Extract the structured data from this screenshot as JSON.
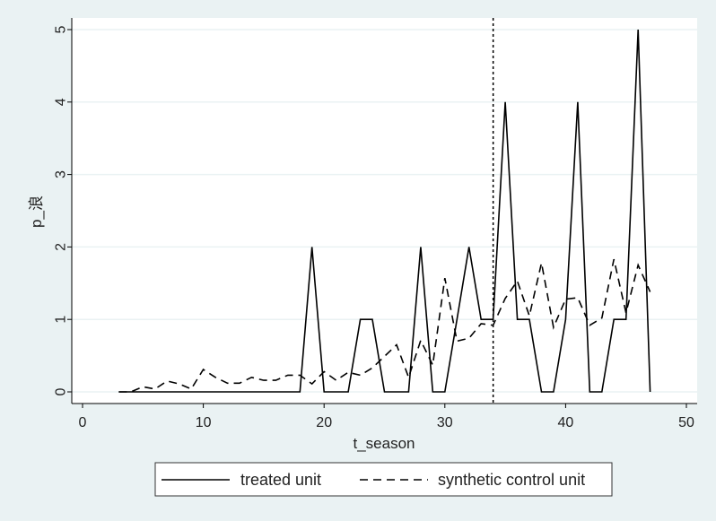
{
  "chart_data": {
    "type": "line",
    "title": "",
    "xlabel": "t_season",
    "ylabel": "p_浪",
    "xlim": [
      0,
      50
    ],
    "ylim": [
      0,
      5
    ],
    "xticks": [
      0,
      10,
      20,
      30,
      40,
      50
    ],
    "yticks": [
      0,
      1,
      2,
      3,
      4,
      5
    ],
    "grid": "horizontal",
    "legend_position": "bottom",
    "vline": {
      "x": 34,
      "style": "dotted"
    },
    "colors": {
      "background": "#eaf2f3",
      "plot_bg": "#ffffff",
      "line": "#000000",
      "grid": "#eaf2f3"
    },
    "series": [
      {
        "name": "treated unit",
        "style": "solid",
        "x": [
          3,
          4,
          5,
          6,
          7,
          8,
          9,
          10,
          11,
          12,
          13,
          14,
          15,
          16,
          17,
          18,
          19,
          20,
          21,
          22,
          23,
          24,
          25,
          26,
          27,
          28,
          29,
          30,
          31,
          32,
          33,
          34,
          35,
          36,
          37,
          38,
          39,
          40,
          41,
          42,
          43,
          44,
          45,
          46,
          47
        ],
        "y": [
          0,
          0,
          0,
          0,
          0,
          0,
          0,
          0,
          0,
          0,
          0,
          0,
          0,
          0,
          0,
          0,
          2,
          0,
          0,
          0,
          1,
          1,
          0,
          0,
          0,
          2,
          0,
          0,
          1,
          2,
          1,
          1,
          4,
          1,
          1,
          0,
          0,
          1,
          4,
          0,
          0,
          1,
          1,
          5,
          0
        ]
      },
      {
        "name": "synthetic control unit",
        "style": "dashed",
        "x": [
          3,
          4,
          5,
          6,
          7,
          8,
          9,
          10,
          11,
          12,
          13,
          14,
          15,
          16,
          17,
          18,
          19,
          20,
          21,
          22,
          23,
          24,
          25,
          26,
          27,
          28,
          29,
          30,
          31,
          32,
          33,
          34,
          35,
          36,
          37,
          38,
          39,
          40,
          41,
          42,
          43,
          44,
          45,
          46,
          47
        ],
        "y": [
          0,
          0,
          0.07,
          0.04,
          0.15,
          0.11,
          0.04,
          0.31,
          0.2,
          0.12,
          0.12,
          0.2,
          0.16,
          0.16,
          0.23,
          0.23,
          0.11,
          0.28,
          0.16,
          0.27,
          0.23,
          0.33,
          0.49,
          0.65,
          0.2,
          0.71,
          0.37,
          1.57,
          0.7,
          0.74,
          0.94,
          0.92,
          1.29,
          1.53,
          1.05,
          1.78,
          0.89,
          1.28,
          1.3,
          0.92,
          1.02,
          1.83,
          1.09,
          1.75,
          1.38
        ]
      }
    ]
  }
}
